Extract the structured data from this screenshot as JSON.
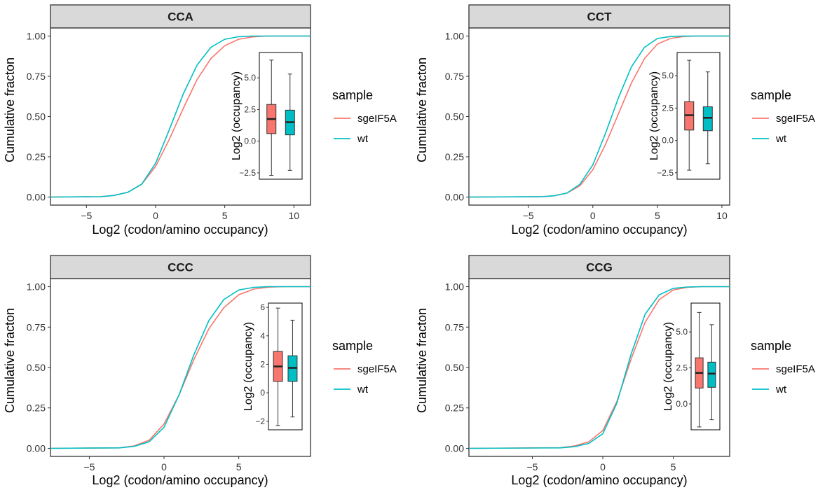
{
  "chart_data": [
    {
      "type": "line",
      "title": "CCA",
      "xlabel": "Log2 (codon/amino occupancy)",
      "ylabel": "Cumulative fracton",
      "xlim": [
        -7.6,
        11.2
      ],
      "ylim": [
        -0.05,
        1.05
      ],
      "xticks": [
        -5,
        0,
        5,
        10
      ],
      "xtick_labels": [
        "−5",
        "0",
        "5",
        "10"
      ],
      "yticks": [
        0,
        0.25,
        0.5,
        0.75,
        1
      ],
      "ytick_labels": [
        "0.00",
        "0.25",
        "0.50",
        "0.75",
        "1.00"
      ],
      "series": [
        {
          "name": "sgeIF5A",
          "color": "#F8766D",
          "x": [
            -7.6,
            -4,
            -3,
            -2,
            -1,
            0,
            1,
            2,
            3,
            4,
            5,
            6,
            7,
            8,
            9,
            11.2
          ],
          "y": [
            0.0,
            0.002,
            0.01,
            0.03,
            0.08,
            0.19,
            0.36,
            0.55,
            0.73,
            0.86,
            0.94,
            0.98,
            0.995,
            1.0,
            1.0,
            1.0
          ]
        },
        {
          "name": "wt",
          "color": "#00BFC4",
          "x": [
            -7.6,
            -4,
            -3,
            -2,
            -1,
            0,
            1,
            2,
            3,
            4,
            5,
            6,
            7,
            8,
            9,
            11.2
          ],
          "y": [
            0.0,
            0.002,
            0.01,
            0.03,
            0.08,
            0.21,
            0.42,
            0.64,
            0.82,
            0.93,
            0.98,
            0.996,
            1.0,
            1.0,
            1.0,
            1.0
          ]
        }
      ],
      "inset": {
        "type": "box",
        "ylabel": "Log2 (occupancy)",
        "ylim": [
          -3.0,
          7.0
        ],
        "yticks": [
          -2.5,
          0,
          2.5,
          5
        ],
        "ytick_labels": [
          "−2.5",
          "0.0",
          "2.5",
          "5.0"
        ],
        "boxes": [
          {
            "name": "sgeIF5A",
            "color": "#F8766D",
            "min": -2.7,
            "q1": 0.6,
            "median": 1.75,
            "q3": 2.9,
            "max": 6.4
          },
          {
            "name": "wt",
            "color": "#00BFC4",
            "min": -2.3,
            "q1": 0.5,
            "median": 1.5,
            "q3": 2.45,
            "max": 5.3
          }
        ]
      },
      "legend": {
        "title": "sample",
        "position": "right",
        "entries": [
          "sgeIF5A",
          "wt"
        ]
      }
    },
    {
      "type": "line",
      "title": "CCT",
      "xlabel": "Log2 (codon/amino occupancy)",
      "ylabel": "Cumulative fracton",
      "xlim": [
        -9.6,
        10.6
      ],
      "ylim": [
        -0.05,
        1.05
      ],
      "xticks": [
        -5,
        0,
        5,
        10
      ],
      "xtick_labels": [
        "−5",
        "0",
        "5",
        "10"
      ],
      "yticks": [
        0,
        0.25,
        0.5,
        0.75,
        1
      ],
      "ytick_labels": [
        "0.00",
        "0.25",
        "0.50",
        "0.75",
        "1.00"
      ],
      "series": [
        {
          "name": "sgeIF5A",
          "color": "#F8766D",
          "x": [
            -9.6,
            -4,
            -3,
            -2,
            -1,
            0,
            1,
            2,
            3,
            4,
            5,
            6,
            7,
            8,
            9,
            10.6
          ],
          "y": [
            0.0,
            0.002,
            0.008,
            0.025,
            0.07,
            0.17,
            0.33,
            0.52,
            0.71,
            0.86,
            0.95,
            0.985,
            0.997,
            1.0,
            1.0,
            1.0
          ]
        },
        {
          "name": "wt",
          "color": "#00BFC4",
          "x": [
            -9.6,
            -4,
            -3,
            -2,
            -1,
            0,
            1,
            2,
            3,
            4,
            5,
            6,
            7,
            8,
            9,
            10.6
          ],
          "y": [
            0.0,
            0.002,
            0.008,
            0.025,
            0.08,
            0.2,
            0.4,
            0.62,
            0.81,
            0.93,
            0.985,
            0.997,
            1.0,
            1.0,
            1.0,
            1.0
          ]
        }
      ],
      "inset": {
        "type": "box",
        "ylabel": "Log2 (occupancy)",
        "ylim": [
          -3.0,
          6.8
        ],
        "yticks": [
          -2.5,
          0,
          2.5,
          5
        ],
        "ytick_labels": [
          "−2.5",
          "0.0",
          "2.5",
          "5.0"
        ],
        "boxes": [
          {
            "name": "sgeIF5A",
            "color": "#F8766D",
            "min": -2.3,
            "q1": 0.8,
            "median": 1.95,
            "q3": 3.0,
            "max": 6.2
          },
          {
            "name": "wt",
            "color": "#00BFC4",
            "min": -1.8,
            "q1": 0.75,
            "median": 1.75,
            "q3": 2.6,
            "max": 5.3
          }
        ]
      },
      "legend": {
        "title": "sample",
        "position": "right",
        "entries": [
          "sgeIF5A",
          "wt"
        ]
      }
    },
    {
      "type": "line",
      "title": "CCC",
      "xlabel": "Log2 (codon/amino occupancy)",
      "ylabel": "Cumulative fracton",
      "xlim": [
        -7.6,
        9.8
      ],
      "ylim": [
        -0.05,
        1.05
      ],
      "xticks": [
        -5,
        0,
        5
      ],
      "xtick_labels": [
        "−5",
        "0",
        "5"
      ],
      "yticks": [
        0,
        0.25,
        0.5,
        0.75,
        1
      ],
      "ytick_labels": [
        "0.00",
        "0.25",
        "0.50",
        "0.75",
        "1.00"
      ],
      "series": [
        {
          "name": "sgeIF5A",
          "color": "#F8766D",
          "x": [
            -7.6,
            -3,
            -2,
            -1,
            0,
            1,
            2,
            3,
            4,
            5,
            6,
            7,
            8,
            9.8
          ],
          "y": [
            0.0,
            0.003,
            0.015,
            0.05,
            0.15,
            0.33,
            0.55,
            0.74,
            0.87,
            0.95,
            0.985,
            0.997,
            1.0,
            1.0
          ]
        },
        {
          "name": "wt",
          "color": "#00BFC4",
          "x": [
            -7.6,
            -3,
            -2,
            -1,
            0,
            1,
            2,
            3,
            4,
            5,
            6,
            7,
            8,
            9.8
          ],
          "y": [
            0.0,
            0.003,
            0.012,
            0.04,
            0.13,
            0.33,
            0.58,
            0.79,
            0.92,
            0.98,
            0.996,
            1.0,
            1.0,
            1.0
          ]
        }
      ],
      "inset": {
        "type": "box",
        "ylabel": "Log2 (occupancy)",
        "ylim": [
          -2.6,
          6.3
        ],
        "yticks": [
          -2,
          0,
          2,
          4,
          6
        ],
        "ytick_labels": [
          "−2",
          "0",
          "2",
          "4",
          "6"
        ],
        "boxes": [
          {
            "name": "sgeIF5A",
            "color": "#F8766D",
            "min": -2.3,
            "q1": 0.8,
            "median": 1.85,
            "q3": 2.9,
            "max": 5.95
          },
          {
            "name": "wt",
            "color": "#00BFC4",
            "min": -1.7,
            "q1": 0.8,
            "median": 1.75,
            "q3": 2.6,
            "max": 5.1
          }
        ]
      },
      "legend": {
        "title": "sample",
        "position": "right",
        "entries": [
          "sgeIF5A",
          "wt"
        ]
      }
    },
    {
      "type": "line",
      "title": "CCG",
      "xlabel": "Log2 (codon/amino occupancy)",
      "ylabel": "Cumulative fracton",
      "xlim": [
        -9.5,
        9.0
      ],
      "ylim": [
        -0.05,
        1.05
      ],
      "xticks": [
        -5,
        0,
        5
      ],
      "xtick_labels": [
        "−5",
        "0",
        "5"
      ],
      "yticks": [
        0,
        0.25,
        0.5,
        0.75,
        1
      ],
      "ytick_labels": [
        "0.00",
        "0.25",
        "0.50",
        "0.75",
        "1.00"
      ],
      "series": [
        {
          "name": "sgeIF5A",
          "color": "#F8766D",
          "x": [
            -9.5,
            -3,
            -2,
            -1,
            0,
            1,
            2,
            3,
            4,
            5,
            6,
            7,
            9.0
          ],
          "y": [
            0.0,
            0.004,
            0.015,
            0.04,
            0.11,
            0.29,
            0.55,
            0.78,
            0.92,
            0.98,
            0.996,
            1.0,
            1.0
          ]
        },
        {
          "name": "wt",
          "color": "#00BFC4",
          "x": [
            -9.5,
            -3,
            -2,
            -1,
            0,
            1,
            2,
            3,
            4,
            5,
            6,
            7,
            9.0
          ],
          "y": [
            0.0,
            0.003,
            0.01,
            0.03,
            0.09,
            0.28,
            0.58,
            0.83,
            0.95,
            0.99,
            0.998,
            1.0,
            1.0
          ]
        }
      ],
      "inset": {
        "type": "box",
        "ylabel": "Log2 (occupancy)",
        "ylim": [
          -1.8,
          7.0
        ],
        "yticks": [
          0,
          2.5,
          5
        ],
        "ytick_labels": [
          "0.0",
          "2.5",
          "5.0"
        ],
        "boxes": [
          {
            "name": "sgeIF5A",
            "color": "#F8766D",
            "min": -1.6,
            "q1": 1.1,
            "median": 2.15,
            "q3": 3.2,
            "max": 6.35
          },
          {
            "name": "wt",
            "color": "#00BFC4",
            "min": -1.1,
            "q1": 1.15,
            "median": 2.1,
            "q3": 2.9,
            "max": 5.5
          }
        ]
      },
      "legend": {
        "title": "sample",
        "position": "right",
        "entries": [
          "sgeIF5A",
          "wt"
        ]
      }
    }
  ]
}
